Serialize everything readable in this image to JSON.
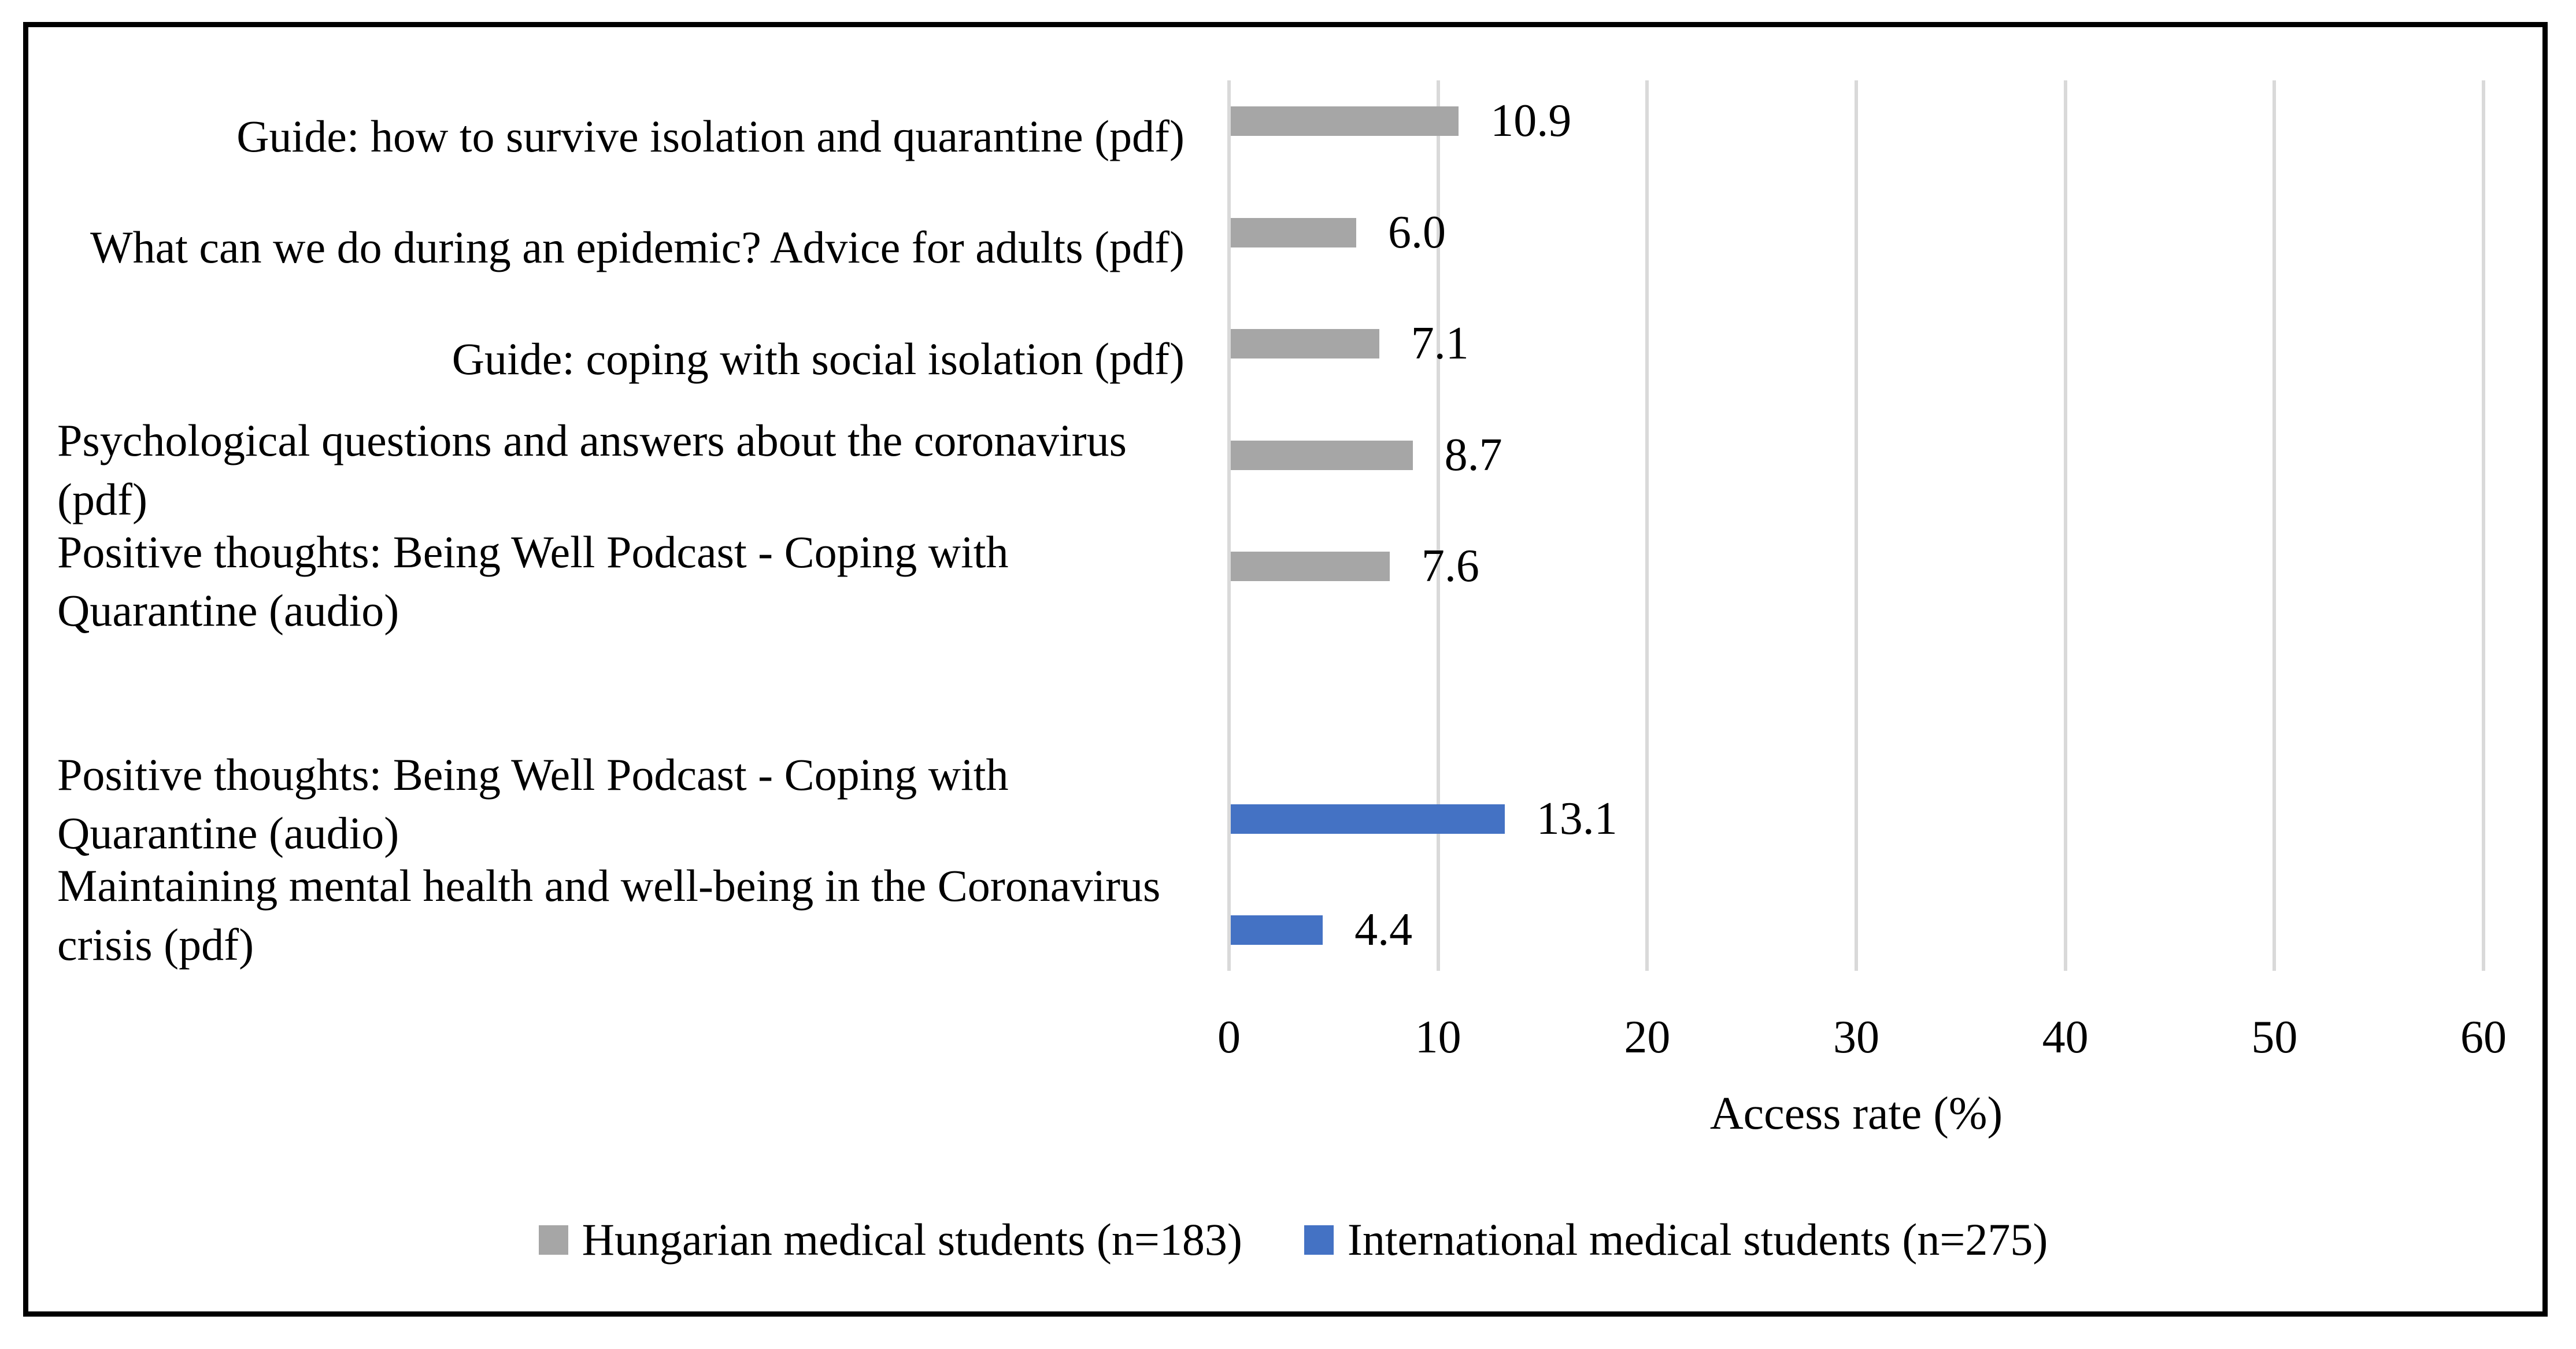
{
  "figure": {
    "background": "#ffffff",
    "border_color": "#000000"
  },
  "chart_data": {
    "type": "bar",
    "orientation": "horizontal",
    "title": "",
    "xlabel": "Access rate (%)",
    "ylabel": "",
    "xlim": [
      0,
      60
    ],
    "xticks": [
      0,
      10,
      20,
      30,
      40,
      50,
      60
    ],
    "grid": true,
    "gridline_color": "#d9d9d9",
    "rows": [
      {
        "label": "Guide: how to survive isolation and quarantine (pdf)",
        "series": "hungarian",
        "value": 10.9,
        "value_label": "10.9"
      },
      {
        "label": "What can we do during an epidemic? Advice for adults (pdf)",
        "series": "hungarian",
        "value": 6.0,
        "value_label": "6.0"
      },
      {
        "label": "Guide: coping with social isolation (pdf)",
        "series": "hungarian",
        "value": 7.1,
        "value_label": "7.1"
      },
      {
        "label": "Psychological questions and answers about the coronavirus (pdf)",
        "series": "hungarian",
        "value": 8.7,
        "value_label": "8.7"
      },
      {
        "label": "Positive thoughts: Being Well Podcast - Coping with Quarantine (audio)",
        "series": "hungarian",
        "value": 7.6,
        "value_label": "7.6"
      },
      {
        "label": "",
        "series": null,
        "value": null,
        "value_label": ""
      },
      {
        "label": "Positive thoughts: Being Well Podcast - Coping with Quarantine (audio)",
        "series": "international",
        "value": 13.1,
        "value_label": "13.1"
      },
      {
        "label": "Maintaining mental health and well-being in the Coronavirus crisis (pdf)",
        "series": "international",
        "value": 4.4,
        "value_label": "4.4"
      }
    ],
    "series_colors": {
      "hungarian": "#a6a6a6",
      "international": "#4472c4"
    },
    "legend": [
      {
        "series": "hungarian",
        "label": "Hungarian medical students (n=183)",
        "color": "#a6a6a6"
      },
      {
        "series": "international",
        "label": "International medical students (n=275)",
        "color": "#4472c4"
      }
    ],
    "legend_position": "bottom"
  }
}
